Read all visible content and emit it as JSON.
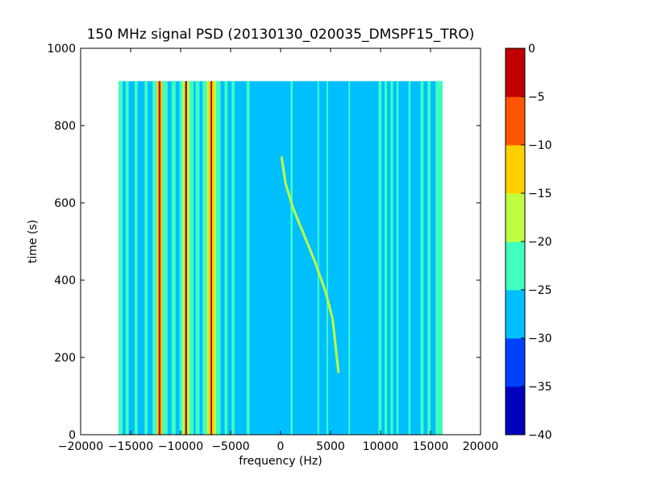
{
  "chart_data": {
    "type": "heatmap",
    "title": "150 MHz signal PSD (20130130_020035_DMSPF15_TRO)",
    "xlabel": "frequency (Hz)",
    "ylabel": "time (s)",
    "xlim": [
      -20000,
      20000
    ],
    "ylim": [
      0,
      1000
    ],
    "x_ticks": [
      -20000,
      -15000,
      -10000,
      -5000,
      0,
      5000,
      10000,
      15000,
      20000
    ],
    "x_tick_labels": [
      "−20000",
      "−15000",
      "−10000",
      "−5000",
      "0",
      "5000",
      "10000",
      "15000",
      "20000"
    ],
    "y_ticks": [
      0,
      200,
      400,
      600,
      800,
      1000
    ],
    "y_tick_labels": [
      "0",
      "200",
      "400",
      "600",
      "800",
      "1000"
    ],
    "data_extent": {
      "f_min": -16200,
      "f_max": 16200,
      "t_min": 0,
      "t_max": 915
    },
    "background_level_dB": -27,
    "colorbar": {
      "levels": [
        -40,
        -35,
        -30,
        -25,
        -20,
        -15,
        -10,
        -5,
        0
      ],
      "tick_labels": [
        "−40",
        "−35",
        "−30",
        "−25",
        "−20",
        "−15",
        "−10",
        "−5",
        "0"
      ],
      "colors": [
        "#0000bf",
        "#0040ff",
        "#00bfff",
        "#40ffbf",
        "#bfff40",
        "#ffd000",
        "#ff5500",
        "#c00000"
      ]
    },
    "bands": [
      {
        "f_start": -16200,
        "f_end": -15800,
        "level": -22
      },
      {
        "f_start": -15500,
        "f_end": -15200,
        "level": -22
      },
      {
        "f_start": -14600,
        "f_end": -14300,
        "level": -22
      },
      {
        "f_start": -13600,
        "f_end": -13300,
        "level": -22
      },
      {
        "f_start": -12800,
        "f_end": -12400,
        "level": -22
      },
      {
        "f_start": -12400,
        "f_end": -12200,
        "level": -12
      },
      {
        "f_start": -12200,
        "f_end": -12000,
        "level": -3
      },
      {
        "f_start": -12000,
        "f_end": -11800,
        "level": -12
      },
      {
        "f_start": -11800,
        "f_end": -11300,
        "level": -22
      },
      {
        "f_start": -10900,
        "f_end": -10500,
        "level": -22
      },
      {
        "f_start": -10100,
        "f_end": -9800,
        "level": -22
      },
      {
        "f_start": -9800,
        "f_end": -9550,
        "level": -17
      },
      {
        "f_start": -9550,
        "f_end": -9350,
        "level": -3
      },
      {
        "f_start": -9350,
        "f_end": -9100,
        "level": -17
      },
      {
        "f_start": -9100,
        "f_end": -8700,
        "level": -22
      },
      {
        "f_start": -8500,
        "f_end": -8100,
        "level": -22
      },
      {
        "f_start": -7800,
        "f_end": -7400,
        "level": -22
      },
      {
        "f_start": -7400,
        "f_end": -7200,
        "level": -17
      },
      {
        "f_start": -7200,
        "f_end": -7000,
        "level": -12
      },
      {
        "f_start": -7000,
        "f_end": -6850,
        "level": -3
      },
      {
        "f_start": -6850,
        "f_end": -6650,
        "level": -12
      },
      {
        "f_start": -6650,
        "f_end": -6450,
        "level": -17
      },
      {
        "f_start": -6450,
        "f_end": -6000,
        "level": -22
      },
      {
        "f_start": -5600,
        "f_end": -5300,
        "level": -22
      },
      {
        "f_start": -4900,
        "f_end": -4600,
        "level": -22
      },
      {
        "f_start": -3400,
        "f_end": -3100,
        "level": -22
      },
      {
        "f_start": 1000,
        "f_end": 1200,
        "level": -22
      },
      {
        "f_start": 3700,
        "f_end": 3850,
        "level": -22
      },
      {
        "f_start": 4600,
        "f_end": 4750,
        "level": -22
      },
      {
        "f_start": 6800,
        "f_end": 6950,
        "level": -22
      },
      {
        "f_start": 9800,
        "f_end": 10100,
        "level": -22
      },
      {
        "f_start": 10400,
        "f_end": 10650,
        "level": -22
      },
      {
        "f_start": 11000,
        "f_end": 11250,
        "level": -22
      },
      {
        "f_start": 11600,
        "f_end": 11800,
        "level": -22
      },
      {
        "f_start": 12800,
        "f_end": 13000,
        "level": -22
      },
      {
        "f_start": 14000,
        "f_end": 14300,
        "level": -22
      },
      {
        "f_start": 14700,
        "f_end": 15000,
        "level": -22
      },
      {
        "f_start": 15500,
        "f_end": 16200,
        "level": -22
      }
    ],
    "doppler_trace": {
      "level": -17,
      "points": [
        [
          5800,
          160
        ],
        [
          5500,
          230
        ],
        [
          5200,
          300
        ],
        [
          4500,
          370
        ],
        [
          3400,
          450
        ],
        [
          2300,
          520
        ],
        [
          1200,
          590
        ],
        [
          500,
          650
        ],
        [
          100,
          720
        ]
      ]
    }
  }
}
